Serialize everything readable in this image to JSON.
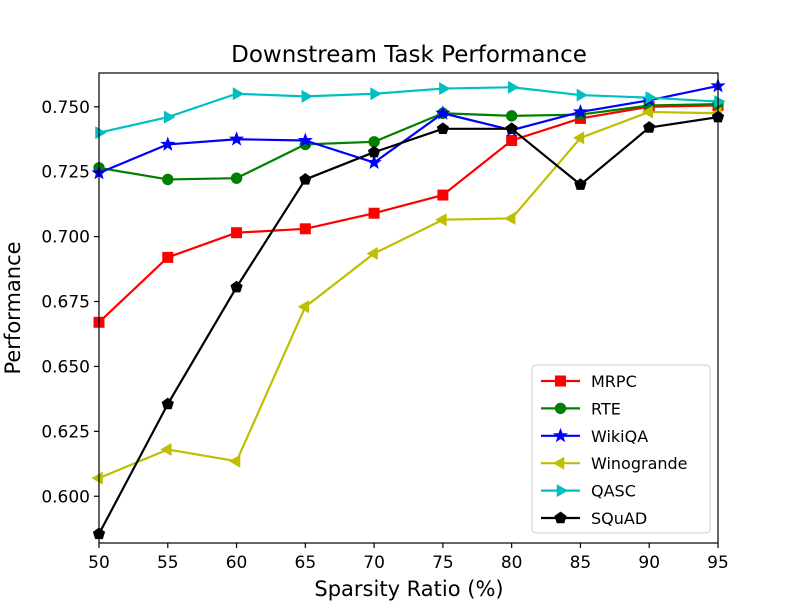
{
  "chart_data": {
    "type": "line",
    "title": "Downstream Task Performance",
    "xlabel": "Sparsity Ratio (%)",
    "ylabel": "Performance",
    "xlim": [
      50,
      95
    ],
    "ylim": [
      0.582,
      0.763
    ],
    "xticks": [
      "50",
      "55",
      "60",
      "65",
      "70",
      "75",
      "80",
      "85",
      "90",
      "95"
    ],
    "yticks": [
      "0.600",
      "0.625",
      "0.650",
      "0.675",
      "0.700",
      "0.725",
      "0.750"
    ],
    "legend_position": "lower-right",
    "grid": false,
    "x": [
      50,
      55,
      60,
      65,
      70,
      75,
      80,
      85,
      90,
      95
    ],
    "series": [
      {
        "name": "MRPC",
        "color": "#ff0000",
        "marker": "square",
        "values": [
          0.667,
          0.692,
          0.7015,
          0.703,
          0.709,
          0.716,
          0.737,
          0.7455,
          0.75,
          0.7505
        ]
      },
      {
        "name": "RTE",
        "color": "#008000",
        "marker": "circle",
        "values": [
          0.7265,
          0.722,
          0.7225,
          0.7355,
          0.7365,
          0.7475,
          0.7465,
          0.747,
          0.7505,
          0.751
        ]
      },
      {
        "name": "WikiQA",
        "color": "#0000ff",
        "marker": "star",
        "values": [
          0.7245,
          0.7355,
          0.7375,
          0.737,
          0.7285,
          0.7475,
          0.741,
          0.748,
          0.7525,
          0.758
        ]
      },
      {
        "name": "Winogrande",
        "color": "#bfbf00",
        "marker": "triangle-left",
        "values": [
          0.607,
          0.618,
          0.6135,
          0.673,
          0.6935,
          0.7065,
          0.707,
          0.738,
          0.748,
          0.7475
        ]
      },
      {
        "name": "QASC",
        "color": "#00bfbf",
        "marker": "triangle-right",
        "values": [
          0.74,
          0.746,
          0.755,
          0.754,
          0.755,
          0.757,
          0.7575,
          0.7545,
          0.7535,
          0.752
        ]
      },
      {
        "name": "SQuAD",
        "color": "#000000",
        "marker": "pentagon",
        "values": [
          0.5855,
          0.6355,
          0.6805,
          0.722,
          0.7325,
          0.7415,
          0.7415,
          0.72,
          0.742,
          0.746
        ]
      }
    ]
  }
}
